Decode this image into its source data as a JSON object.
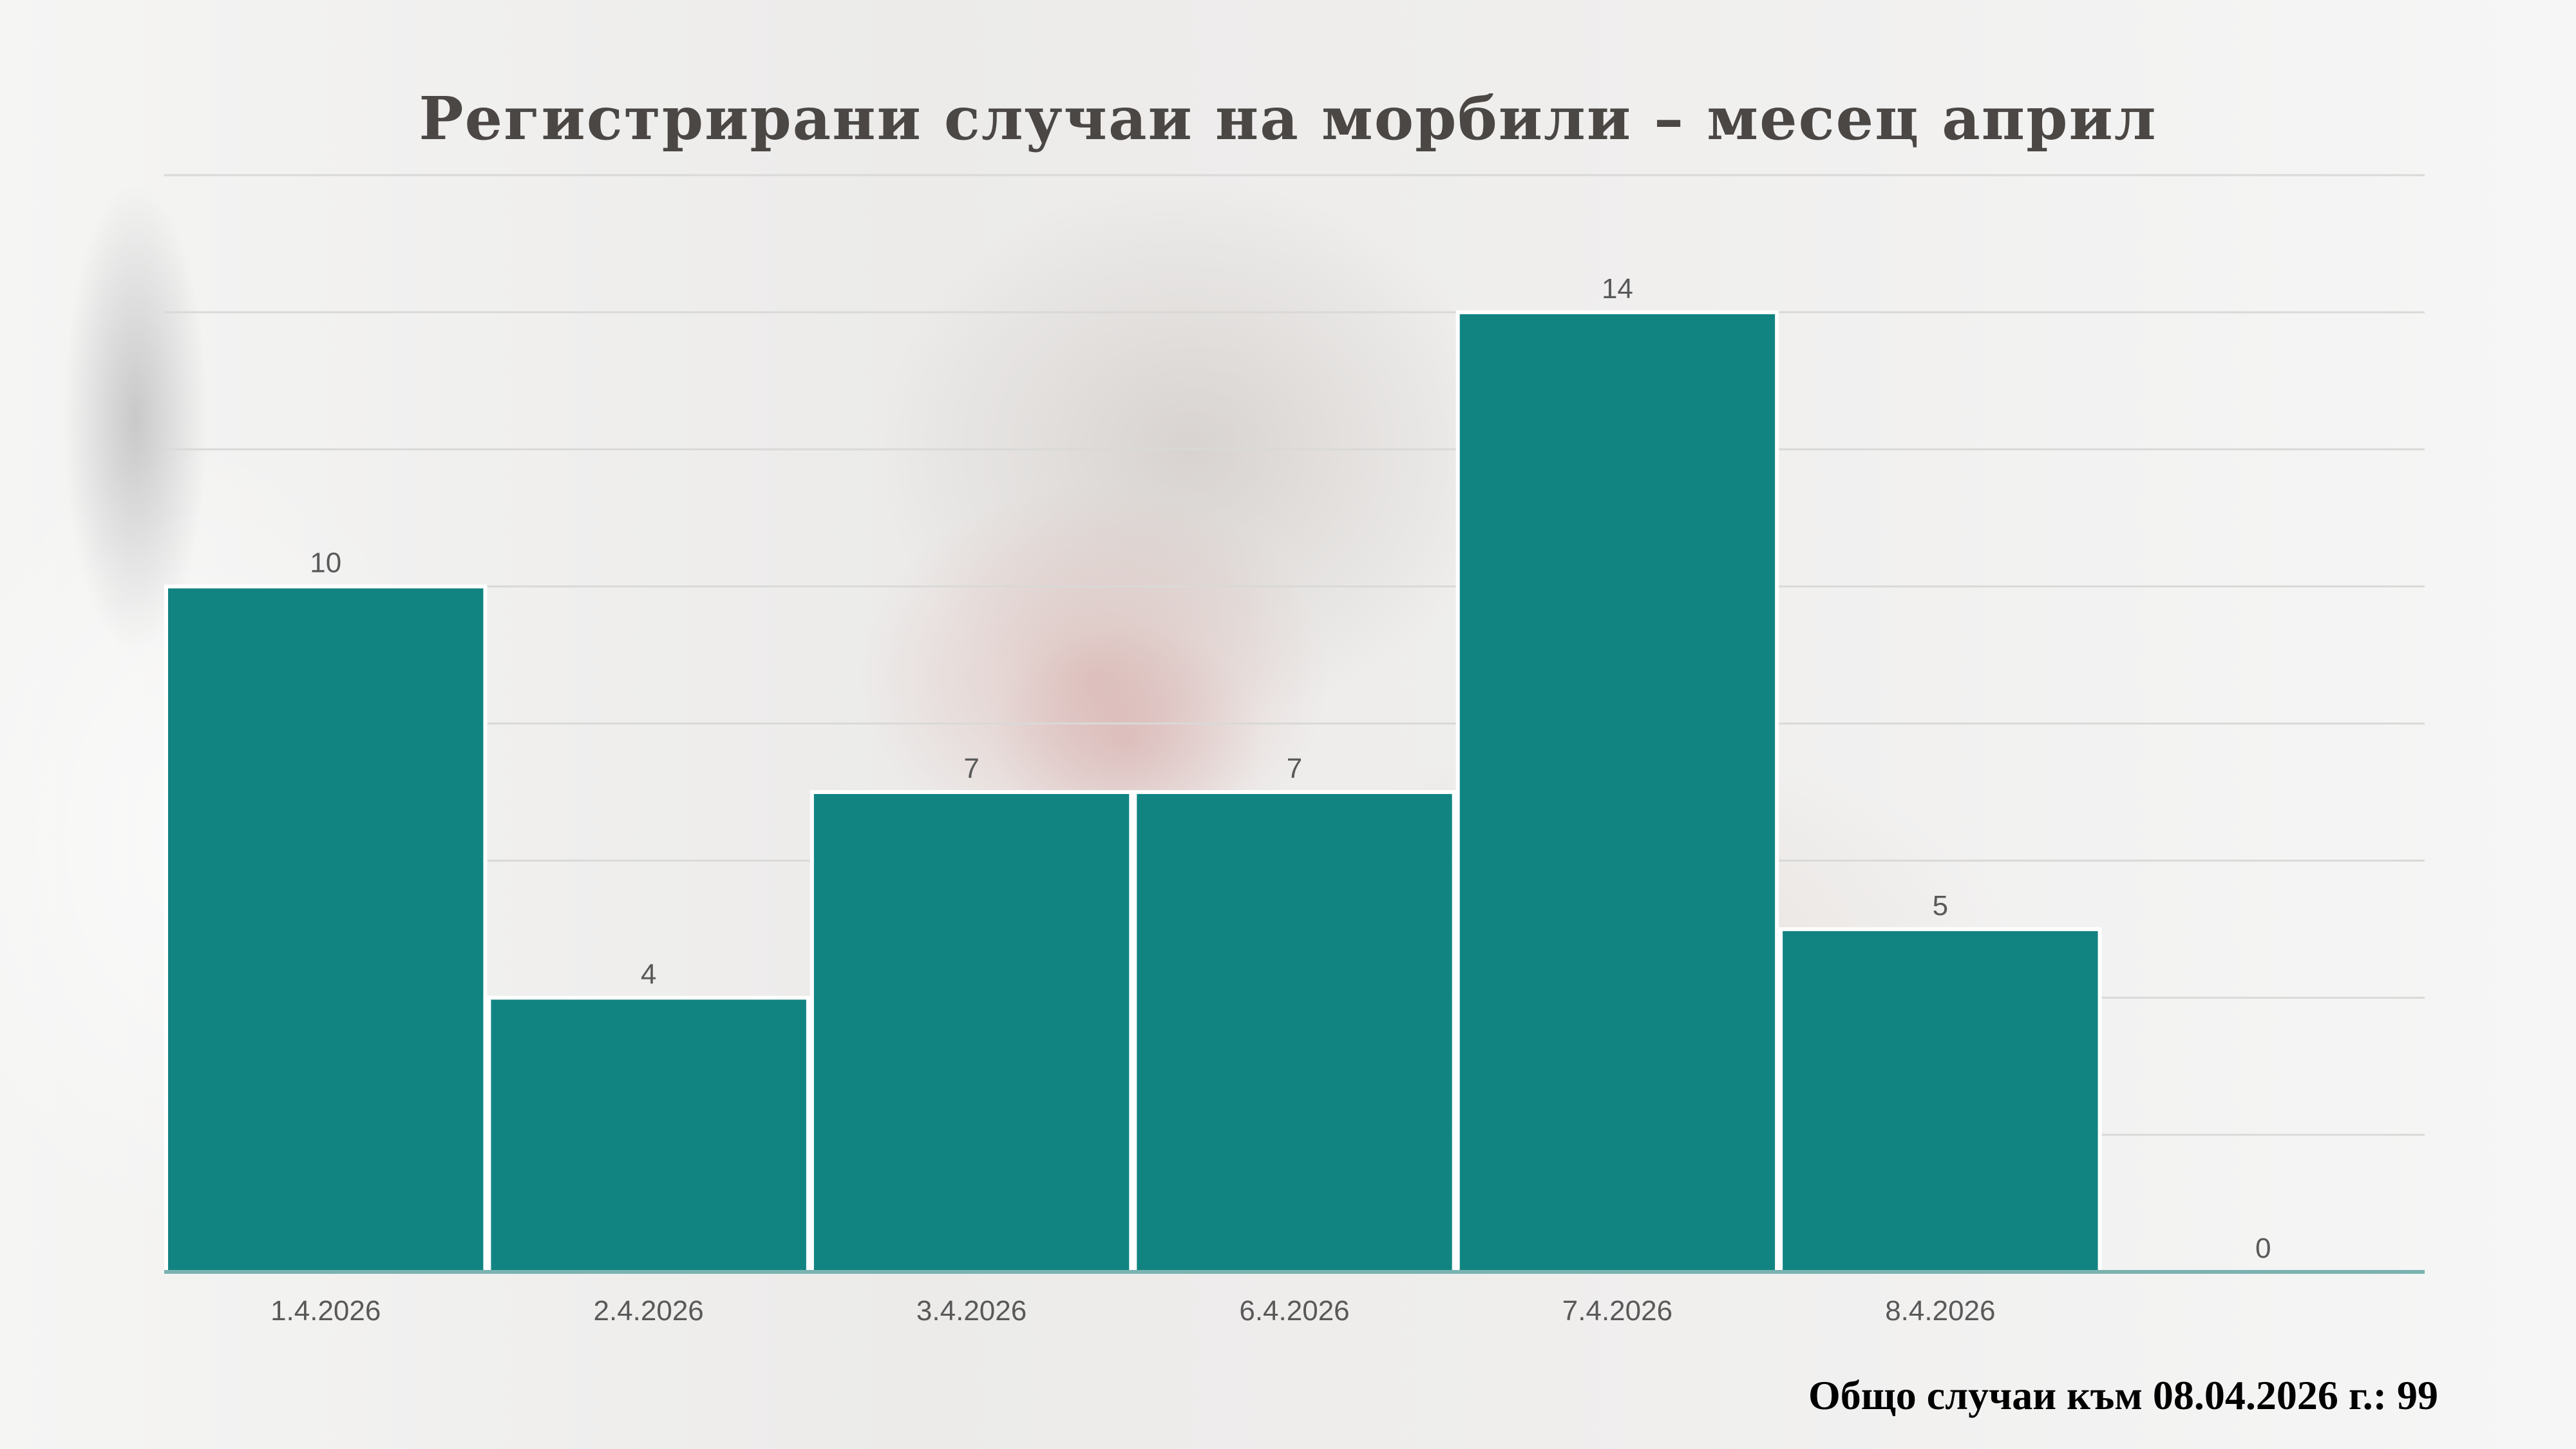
{
  "footer": {
    "total_label": "Общо случаи към 08.04.2026 г.: 99"
  },
  "colors": {
    "bar": "#118482",
    "bar_border": "#ffffff",
    "gridline": "#d9d9d7",
    "axis": "#7ab3b1",
    "text": "#595959"
  },
  "chart_data": {
    "type": "bar",
    "title": "Регистрирани случаи на морбили – месец април",
    "categories": [
      "1.4.2026",
      "2.4.2026",
      "3.4.2026",
      "6.4.2026",
      "7.4.2026",
      "8.4.2026",
      ""
    ],
    "values": [
      10,
      4,
      7,
      7,
      14,
      5,
      0
    ],
    "data_labels": [
      "10",
      "4",
      "7",
      "7",
      "14",
      "5",
      "0"
    ],
    "ylim": [
      0,
      16
    ],
    "grid": true,
    "legend": "none",
    "xlabel": "",
    "ylabel": ""
  }
}
